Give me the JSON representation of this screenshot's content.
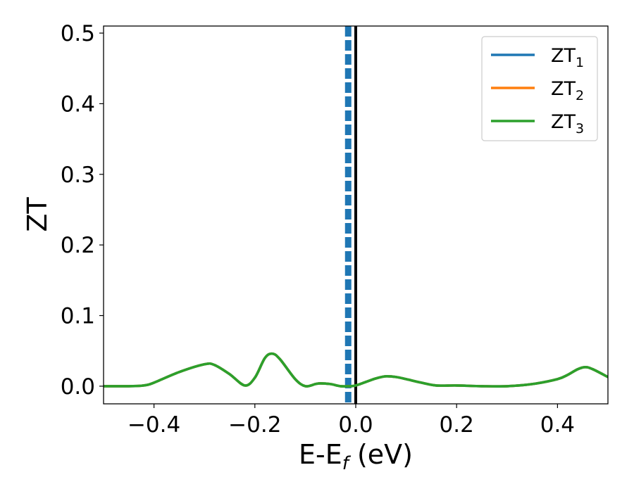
{
  "chart_data": {
    "type": "line",
    "title": "",
    "xlabel": "E-E",
    "xlabel_subscript": "f",
    "xlabel_unit": " (eV)",
    "ylabel": "ZT",
    "xlim": [
      -0.5,
      0.5
    ],
    "ylim": [
      -0.025,
      0.51
    ],
    "xticks": [
      -0.4,
      -0.2,
      0.0,
      0.2,
      0.4
    ],
    "xtick_labels": [
      "−0.4",
      "−0.2",
      "0.0",
      "0.2",
      "0.4"
    ],
    "yticks": [
      0.0,
      0.1,
      0.2,
      0.3,
      0.4,
      0.5
    ],
    "ytick_labels": [
      "0.0",
      "0.1",
      "0.2",
      "0.3",
      "0.4",
      "0.5"
    ],
    "grid": false,
    "legend_position": "top-right",
    "series": [
      {
        "name": "ZT",
        "subscript": "1",
        "color": "#1f77b4",
        "x": [
          -0.5,
          -0.45,
          -0.42,
          -0.4,
          -0.35,
          -0.3,
          -0.28,
          -0.25,
          -0.22,
          -0.2,
          -0.18,
          -0.165,
          -0.15,
          -0.12,
          -0.1,
          -0.08,
          -0.07,
          -0.05,
          -0.03,
          -0.01,
          0.0,
          0.02,
          0.04,
          0.06,
          0.08,
          0.1,
          0.13,
          0.16,
          0.2,
          0.25,
          0.3,
          0.35,
          0.4,
          0.42,
          0.44,
          0.455,
          0.47,
          0.5
        ],
        "y": [
          0.0,
          0.0,
          0.001,
          0.005,
          0.02,
          0.031,
          0.03,
          0.017,
          0.001,
          0.012,
          0.04,
          0.046,
          0.038,
          0.01,
          0.0,
          0.003,
          0.004,
          0.003,
          0.0,
          0.0,
          0.001,
          0.006,
          0.011,
          0.014,
          0.013,
          0.01,
          0.005,
          0.001,
          0.001,
          0.0,
          0.0,
          0.003,
          0.01,
          0.016,
          0.024,
          0.027,
          0.024,
          0.013
        ]
      },
      {
        "name": "ZT",
        "subscript": "2",
        "color": "#ff7f0e",
        "x": [
          -0.5,
          -0.45,
          -0.42,
          -0.4,
          -0.35,
          -0.3,
          -0.28,
          -0.25,
          -0.22,
          -0.2,
          -0.18,
          -0.165,
          -0.15,
          -0.12,
          -0.1,
          -0.08,
          -0.07,
          -0.05,
          -0.03,
          -0.01,
          0.0,
          0.02,
          0.04,
          0.06,
          0.08,
          0.1,
          0.13,
          0.16,
          0.2,
          0.25,
          0.3,
          0.35,
          0.4,
          0.42,
          0.44,
          0.455,
          0.47,
          0.5
        ],
        "y": [
          0.0,
          0.0,
          0.001,
          0.005,
          0.02,
          0.031,
          0.03,
          0.017,
          0.001,
          0.012,
          0.04,
          0.046,
          0.038,
          0.01,
          0.0,
          0.003,
          0.004,
          0.003,
          0.0,
          0.0,
          0.001,
          0.006,
          0.011,
          0.014,
          0.013,
          0.01,
          0.005,
          0.001,
          0.001,
          0.0,
          0.0,
          0.003,
          0.01,
          0.016,
          0.024,
          0.027,
          0.024,
          0.013
        ]
      },
      {
        "name": "ZT",
        "subscript": "3",
        "color": "#2ca02c",
        "x": [
          -0.5,
          -0.45,
          -0.42,
          -0.4,
          -0.35,
          -0.3,
          -0.28,
          -0.25,
          -0.22,
          -0.2,
          -0.18,
          -0.165,
          -0.15,
          -0.12,
          -0.1,
          -0.08,
          -0.07,
          -0.05,
          -0.03,
          -0.01,
          0.0,
          0.02,
          0.04,
          0.06,
          0.08,
          0.1,
          0.13,
          0.16,
          0.2,
          0.25,
          0.3,
          0.35,
          0.4,
          0.42,
          0.44,
          0.455,
          0.47,
          0.5
        ],
        "y": [
          0.0,
          0.0,
          0.001,
          0.005,
          0.02,
          0.031,
          0.03,
          0.017,
          0.001,
          0.012,
          0.04,
          0.046,
          0.038,
          0.01,
          0.0,
          0.003,
          0.004,
          0.003,
          0.0,
          0.0,
          0.001,
          0.006,
          0.011,
          0.014,
          0.013,
          0.01,
          0.005,
          0.001,
          0.001,
          0.0,
          0.0,
          0.003,
          0.01,
          0.016,
          0.024,
          0.027,
          0.024,
          0.013
        ]
      }
    ],
    "vertical_lines": [
      {
        "name": "fermi-level-line",
        "x": 0.0,
        "style": "solid",
        "color": "#000000"
      },
      {
        "name": "dashed-marker-line",
        "x": -0.015,
        "style": "dashed",
        "color": "#1f77b4"
      }
    ]
  }
}
